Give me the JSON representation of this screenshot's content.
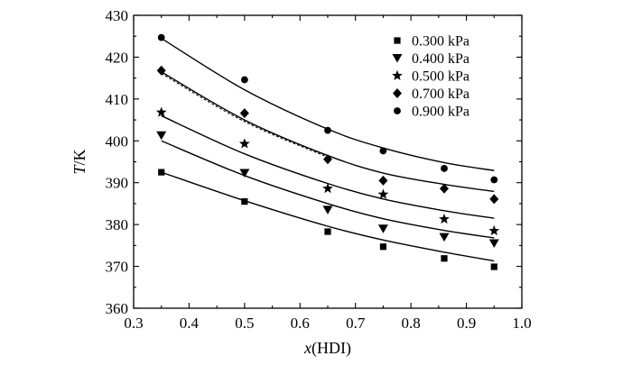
{
  "chart_data": {
    "type": "scatter",
    "title": "",
    "xlabel_italic": "x",
    "xlabel_rest": "(HDI)",
    "ylabel_italic": "T",
    "ylabel_rest": "/K",
    "xlim": [
      0.3,
      1.0
    ],
    "ylim": [
      360,
      430
    ],
    "xticks": [
      0.3,
      0.4,
      0.5,
      0.6,
      0.7,
      0.8,
      0.9,
      1.0
    ],
    "yticks": [
      360,
      370,
      380,
      390,
      400,
      410,
      420,
      430
    ],
    "xtick_labels": [
      "0.3",
      "0.4",
      "0.5",
      "0.6",
      "0.7",
      "0.8",
      "0.9",
      "1.0"
    ],
    "ytick_labels": [
      "360",
      "370",
      "380",
      "390",
      "400",
      "410",
      "420",
      "430"
    ],
    "grid": false,
    "legend_position": "top-right",
    "series": [
      {
        "name": "0.300 kPa",
        "marker": "square",
        "x": [
          0.35,
          0.5,
          0.65,
          0.75,
          0.86,
          0.95
        ],
        "y": [
          392.5,
          385.5,
          378.3,
          374.7,
          371.9,
          369.9
        ],
        "fit": [
          392.5,
          385.7,
          379.6,
          376.3,
          373.4,
          371.3
        ]
      },
      {
        "name": "0.400 kPa",
        "marker": "triangle-down",
        "x": [
          0.35,
          0.5,
          0.65,
          0.75,
          0.86,
          0.95
        ],
        "y": [
          401.3,
          392.3,
          383.5,
          379.0,
          377.0,
          375.5
        ],
        "fit": [
          400.0,
          391.7,
          385.0,
          381.4,
          378.6,
          376.8
        ]
      },
      {
        "name": "0.500 kPa",
        "marker": "star",
        "x": [
          0.35,
          0.5,
          0.65,
          0.75,
          0.86,
          0.95
        ],
        "y": [
          406.8,
          399.3,
          388.6,
          387.2,
          381.3,
          378.5
        ],
        "fit": [
          406.0,
          396.9,
          389.8,
          386.1,
          383.3,
          381.5
        ]
      },
      {
        "name": "0.700 kPa",
        "marker": "diamond",
        "x": [
          0.35,
          0.5,
          0.65,
          0.75,
          0.86,
          0.95
        ],
        "y": [
          416.8,
          406.6,
          395.6,
          390.5,
          388.6,
          386.1
        ],
        "fit": [
          416.5,
          405.0,
          396.5,
          392.3,
          389.6,
          387.9
        ]
      },
      {
        "name": "0.900 kPa",
        "marker": "circle",
        "x": [
          0.35,
          0.5,
          0.65,
          0.75,
          0.86,
          0.95
        ],
        "y": [
          424.7,
          414.6,
          402.5,
          397.6,
          393.4,
          390.7
        ],
        "fit": [
          424.5,
          412.2,
          402.8,
          398.3,
          394.8,
          392.9
        ]
      }
    ]
  }
}
